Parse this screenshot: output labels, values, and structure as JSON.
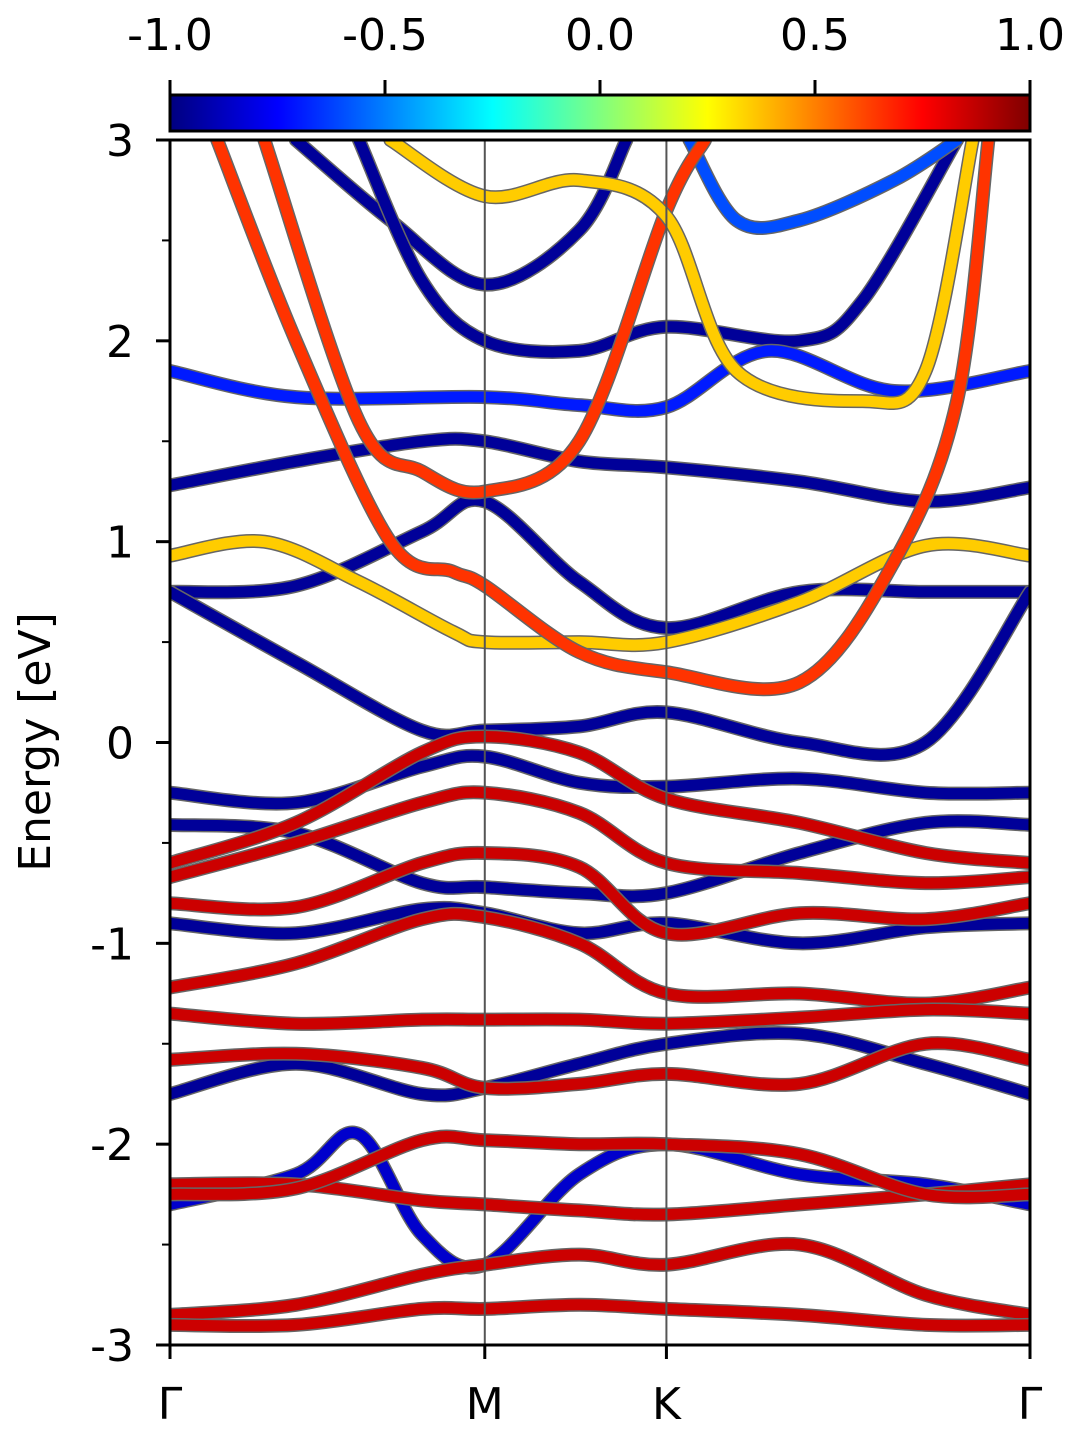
{
  "chart_data": {
    "type": "line",
    "subtype": "band-structure-projected",
    "ylabel": "Energy [eV]",
    "ylim": [
      -3,
      3
    ],
    "yticks": [
      "-3",
      "-2",
      "-1",
      "0",
      "1",
      "2",
      "3"
    ],
    "yticks_values": [
      -3,
      -2,
      -1,
      0,
      1,
      2,
      3
    ],
    "yminor_values": [
      -2.5,
      -1.5,
      -0.5,
      0.5,
      1.5,
      2.5
    ],
    "kpath_labels": [
      "Γ",
      "M",
      "K",
      "Γ"
    ],
    "kpath_positions": [
      0,
      1,
      1.577,
      2.732
    ],
    "colorbar": {
      "min": -1.0,
      "max": 1.0,
      "ticks": [
        "-1.0",
        "-0.5",
        "0.0",
        "0.5",
        "1.0"
      ],
      "tick_values": [
        -1.0,
        -0.5,
        0.0,
        0.5,
        1.0
      ],
      "colormap": "jet"
    },
    "series": [
      {
        "color_value": -0.95,
        "points": [
          [
            0,
            1.28
          ],
          [
            0.4,
            1.4
          ],
          [
            0.8,
            1.5
          ],
          [
            1.0,
            1.5
          ],
          [
            1.3,
            1.4
          ],
          [
            1.577,
            1.37
          ],
          [
            2.0,
            1.3
          ],
          [
            2.4,
            1.2
          ],
          [
            2.732,
            1.27
          ]
        ]
      },
      {
        "color_value": -0.95,
        "points": [
          [
            0,
            0.75
          ],
          [
            0.4,
            0.78
          ],
          [
            0.8,
            1.05
          ],
          [
            1.0,
            1.2
          ],
          [
            1.3,
            0.8
          ],
          [
            1.577,
            0.57
          ],
          [
            2.0,
            0.75
          ],
          [
            2.4,
            0.75
          ],
          [
            2.732,
            0.75
          ]
        ]
      },
      {
        "color_value": -0.95,
        "points": [
          [
            0,
            0.75
          ],
          [
            0.4,
            0.4
          ],
          [
            0.8,
            0.06
          ],
          [
            1.0,
            0.06
          ],
          [
            1.3,
            0.08
          ],
          [
            1.577,
            0.15
          ],
          [
            2.0,
            0.0
          ],
          [
            2.4,
            0.0
          ],
          [
            2.732,
            0.75
          ]
        ]
      },
      {
        "color_value": -0.95,
        "points": [
          [
            0,
            -0.25
          ],
          [
            0.4,
            -0.3
          ],
          [
            0.8,
            -0.12
          ],
          [
            1.0,
            -0.07
          ],
          [
            1.3,
            -0.2
          ],
          [
            1.577,
            -0.22
          ],
          [
            2.0,
            -0.18
          ],
          [
            2.4,
            -0.25
          ],
          [
            2.732,
            -0.25
          ]
        ]
      },
      {
        "color_value": -0.95,
        "points": [
          [
            0,
            -0.41
          ],
          [
            0.4,
            -0.45
          ],
          [
            0.8,
            -0.7
          ],
          [
            1.0,
            -0.72
          ],
          [
            1.3,
            -0.75
          ],
          [
            1.577,
            -0.75
          ],
          [
            2.0,
            -0.55
          ],
          [
            2.4,
            -0.4
          ],
          [
            2.732,
            -0.41
          ]
        ]
      },
      {
        "color_value": -0.95,
        "points": [
          [
            0,
            -0.9
          ],
          [
            0.4,
            -0.95
          ],
          [
            0.8,
            -0.83
          ],
          [
            1.0,
            -0.85
          ],
          [
            1.3,
            -0.95
          ],
          [
            1.577,
            -0.9
          ],
          [
            2.0,
            -1.0
          ],
          [
            2.4,
            -0.92
          ],
          [
            2.732,
            -0.9
          ]
        ]
      },
      {
        "color_value": -0.95,
        "points": [
          [
            0,
            -1.75
          ],
          [
            0.4,
            -1.6
          ],
          [
            0.8,
            -1.75
          ],
          [
            1.0,
            -1.72
          ],
          [
            1.3,
            -1.6
          ],
          [
            1.577,
            -1.5
          ],
          [
            2.0,
            -1.45
          ],
          [
            2.4,
            -1.6
          ],
          [
            2.732,
            -1.75
          ]
        ]
      },
      {
        "color_value": -0.85,
        "points": [
          [
            0,
            -2.3
          ],
          [
            0.4,
            -2.15
          ],
          [
            0.6,
            -1.95
          ],
          [
            0.8,
            -2.45
          ],
          [
            1.0,
            -2.6
          ],
          [
            1.3,
            -2.15
          ],
          [
            1.577,
            -2.0
          ],
          [
            2.0,
            -2.15
          ],
          [
            2.4,
            -2.2
          ],
          [
            2.732,
            -2.3
          ]
        ]
      },
      {
        "color_value": -0.95,
        "points": [
          [
            0.4,
            3.0
          ],
          [
            0.7,
            2.6
          ],
          [
            1.0,
            2.28
          ],
          [
            1.3,
            2.55
          ],
          [
            1.45,
            3.0
          ]
        ]
      },
      {
        "color_value": -0.95,
        "points": [
          [
            0.6,
            3.0
          ],
          [
            0.8,
            2.3
          ],
          [
            1.0,
            2.0
          ],
          [
            1.3,
            1.95
          ],
          [
            1.577,
            2.07
          ],
          [
            2.0,
            2.0
          ],
          [
            2.2,
            2.2
          ],
          [
            2.5,
            3.0
          ]
        ]
      },
      {
        "color_value": -0.6,
        "points": [
          [
            1.65,
            3.0
          ],
          [
            1.8,
            2.6
          ],
          [
            2.0,
            2.6
          ],
          [
            2.3,
            2.8
          ],
          [
            2.5,
            3.0
          ]
        ]
      },
      {
        "color_value": -0.7,
        "points": [
          [
            0,
            1.85
          ],
          [
            0.4,
            1.72
          ],
          [
            1.0,
            1.72
          ],
          [
            1.3,
            1.68
          ],
          [
            1.577,
            1.67
          ],
          [
            1.9,
            1.95
          ],
          [
            2.3,
            1.75
          ],
          [
            2.732,
            1.85
          ]
        ]
      },
      {
        "color_value": 0.35,
        "points": [
          [
            0,
            0.93
          ],
          [
            0.3,
            1.0
          ],
          [
            0.6,
            0.8
          ],
          [
            0.9,
            0.55
          ],
          [
            1.0,
            0.5
          ],
          [
            1.3,
            0.5
          ],
          [
            1.577,
            0.5
          ],
          [
            2.0,
            0.7
          ],
          [
            2.4,
            0.98
          ],
          [
            2.732,
            0.93
          ]
        ]
      },
      {
        "color_value": 0.65,
        "points": [
          [
            0.15,
            3.0
          ],
          [
            0.4,
            2.0
          ],
          [
            0.7,
            1.0
          ],
          [
            0.9,
            0.85
          ],
          [
            1.0,
            0.78
          ],
          [
            1.3,
            0.45
          ],
          [
            1.577,
            0.35
          ],
          [
            2.0,
            0.3
          ],
          [
            2.3,
            0.9
          ],
          [
            2.5,
            1.7
          ],
          [
            2.6,
            3.0
          ]
        ]
      },
      {
        "color_value": 0.65,
        "points": [
          [
            0.3,
            3.0
          ],
          [
            0.6,
            1.6
          ],
          [
            0.8,
            1.35
          ],
          [
            1.0,
            1.25
          ],
          [
            1.3,
            1.5
          ],
          [
            1.577,
            2.65
          ],
          [
            1.7,
            3.0
          ]
        ]
      },
      {
        "color_value": 0.35,
        "points": [
          [
            0.7,
            3.0
          ],
          [
            1.0,
            2.72
          ],
          [
            1.3,
            2.8
          ],
          [
            1.577,
            2.62
          ],
          [
            1.8,
            1.85
          ],
          [
            2.2,
            1.7
          ],
          [
            2.4,
            1.85
          ],
          [
            2.55,
            3.0
          ]
        ]
      },
      {
        "color_value": 0.85,
        "points": [
          [
            0,
            -0.6
          ],
          [
            0.4,
            -0.4
          ],
          [
            0.8,
            -0.05
          ],
          [
            1.0,
            0.03
          ],
          [
            1.3,
            -0.05
          ],
          [
            1.577,
            -0.28
          ],
          [
            2.0,
            -0.4
          ],
          [
            2.4,
            -0.55
          ],
          [
            2.732,
            -0.6
          ]
        ]
      },
      {
        "color_value": 0.85,
        "points": [
          [
            0,
            -0.67
          ],
          [
            0.4,
            -0.5
          ],
          [
            0.8,
            -0.3
          ],
          [
            1.0,
            -0.25
          ],
          [
            1.3,
            -0.35
          ],
          [
            1.577,
            -0.6
          ],
          [
            2.0,
            -0.65
          ],
          [
            2.4,
            -0.7
          ],
          [
            2.732,
            -0.67
          ]
        ]
      },
      {
        "color_value": 0.85,
        "points": [
          [
            0,
            -0.8
          ],
          [
            0.4,
            -0.82
          ],
          [
            0.8,
            -0.6
          ],
          [
            1.0,
            -0.55
          ],
          [
            1.3,
            -0.62
          ],
          [
            1.577,
            -0.95
          ],
          [
            2.0,
            -0.85
          ],
          [
            2.4,
            -0.88
          ],
          [
            2.732,
            -0.8
          ]
        ]
      },
      {
        "color_value": 0.85,
        "points": [
          [
            0,
            -1.22
          ],
          [
            0.4,
            -1.1
          ],
          [
            0.8,
            -0.88
          ],
          [
            1.0,
            -0.87
          ],
          [
            1.3,
            -1.0
          ],
          [
            1.577,
            -1.25
          ],
          [
            2.0,
            -1.25
          ],
          [
            2.4,
            -1.3
          ],
          [
            2.732,
            -1.22
          ]
        ]
      },
      {
        "color_value": 0.85,
        "points": [
          [
            0,
            -1.35
          ],
          [
            0.4,
            -1.4
          ],
          [
            0.8,
            -1.38
          ],
          [
            1.0,
            -1.38
          ],
          [
            1.3,
            -1.38
          ],
          [
            1.577,
            -1.4
          ],
          [
            2.0,
            -1.37
          ],
          [
            2.4,
            -1.33
          ],
          [
            2.732,
            -1.35
          ]
        ]
      },
      {
        "color_value": 0.85,
        "points": [
          [
            0,
            -1.58
          ],
          [
            0.4,
            -1.55
          ],
          [
            0.8,
            -1.62
          ],
          [
            1.0,
            -1.72
          ],
          [
            1.3,
            -1.7
          ],
          [
            1.577,
            -1.65
          ],
          [
            2.0,
            -1.7
          ],
          [
            2.4,
            -1.5
          ],
          [
            2.732,
            -1.58
          ]
        ]
      },
      {
        "color_value": 0.85,
        "points": [
          [
            0,
            -2.2
          ],
          [
            0.4,
            -2.2
          ],
          [
            0.8,
            -2.28
          ],
          [
            1.0,
            -2.3
          ],
          [
            1.3,
            -2.33
          ],
          [
            1.577,
            -2.35
          ],
          [
            2.0,
            -2.3
          ],
          [
            2.4,
            -2.25
          ],
          [
            2.732,
            -2.2
          ]
        ]
      },
      {
        "color_value": 0.85,
        "points": [
          [
            0,
            -2.25
          ],
          [
            0.4,
            -2.22
          ],
          [
            0.8,
            -1.98
          ],
          [
            1.0,
            -1.98
          ],
          [
            1.3,
            -2.0
          ],
          [
            1.577,
            -2.0
          ],
          [
            2.0,
            -2.05
          ],
          [
            2.4,
            -2.25
          ],
          [
            2.732,
            -2.25
          ]
        ]
      },
      {
        "color_value": 0.85,
        "points": [
          [
            0,
            -2.85
          ],
          [
            0.4,
            -2.8
          ],
          [
            0.8,
            -2.65
          ],
          [
            1.0,
            -2.6
          ],
          [
            1.3,
            -2.55
          ],
          [
            1.577,
            -2.6
          ],
          [
            2.0,
            -2.5
          ],
          [
            2.4,
            -2.75
          ],
          [
            2.732,
            -2.85
          ]
        ]
      },
      {
        "color_value": 0.85,
        "points": [
          [
            0,
            -2.9
          ],
          [
            0.4,
            -2.9
          ],
          [
            0.8,
            -2.82
          ],
          [
            1.0,
            -2.82
          ],
          [
            1.3,
            -2.8
          ],
          [
            1.577,
            -2.82
          ],
          [
            2.0,
            -2.85
          ],
          [
            2.4,
            -2.9
          ],
          [
            2.732,
            -2.9
          ]
        ]
      }
    ]
  }
}
